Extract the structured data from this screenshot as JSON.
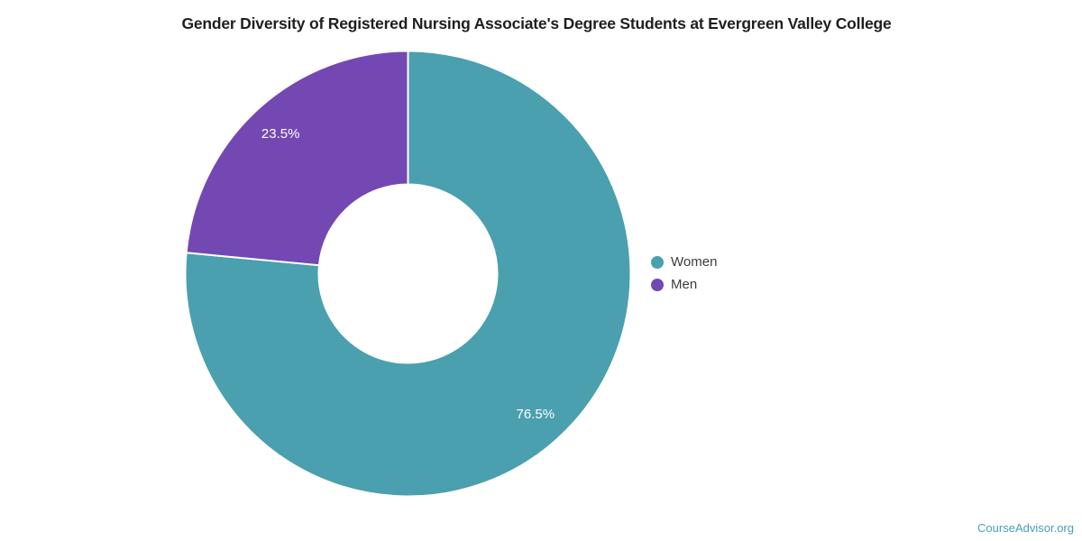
{
  "chart_data": {
    "type": "pie",
    "subtype": "donut",
    "title": "Gender Diversity of Registered Nursing Associate's Degree Students at Evergreen Valley College",
    "categories": [
      "Women",
      "Men"
    ],
    "values": [
      76.5,
      23.5
    ],
    "labels": [
      "76.5%",
      "23.5%"
    ],
    "colors": [
      "#4AA0AE",
      "#7348B3"
    ],
    "label_color": "#ffffff",
    "start_angle_deg": 0,
    "direction": "clockwise",
    "donut_hole_ratio": 0.4,
    "legend_position": "right",
    "legend": [
      {
        "label": "Women",
        "color": "#4AA0AE"
      },
      {
        "label": "Men",
        "color": "#7348B3"
      }
    ]
  },
  "footer": {
    "brand": "CourseAdvisor.org",
    "color": "#4A9FBA"
  }
}
